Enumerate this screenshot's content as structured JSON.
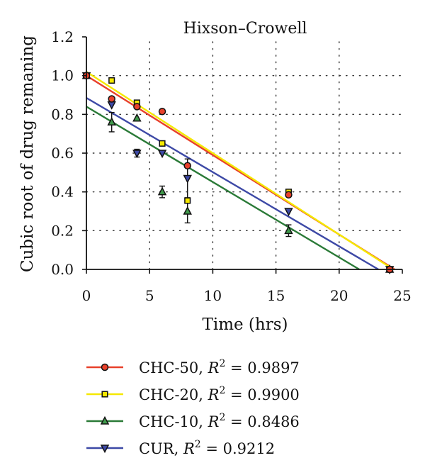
{
  "chart_data": {
    "type": "scatter",
    "title": "Hixson–Crowell",
    "xlabel": "Time (hrs)",
    "ylabel": "Cubic root of drug remaning",
    "xlim": [
      0,
      25
    ],
    "ylim": [
      0,
      1.2
    ],
    "xticks": [
      0,
      5,
      10,
      15,
      20,
      25
    ],
    "yticks": [
      0.0,
      0.2,
      0.4,
      0.6,
      0.8,
      1.0,
      1.2
    ],
    "xtick_labels": [
      "0",
      "5",
      "10",
      "15",
      "20",
      "25"
    ],
    "ytick_labels": [
      "0.0",
      "0.2",
      "0.4",
      "0.6",
      "0.8",
      "1.0",
      "1.2"
    ],
    "grid": "dotted",
    "legend_position": "bottom",
    "series": [
      {
        "name": "CHC-50",
        "r2_label": "R",
        "r2_text": " = 0.9897",
        "color": "#e8412b",
        "marker": "circle",
        "marker_fill": "#e8412b",
        "x": [
          0,
          2,
          4,
          6,
          8,
          16,
          24
        ],
        "y": [
          1.0,
          0.88,
          0.84,
          0.815,
          0.535,
          0.385,
          0.0
        ],
        "err": [
          0,
          0,
          0,
          0,
          0,
          0,
          0
        ],
        "fit": [
          1.0,
          -0.041
        ]
      },
      {
        "name": "CHC-20",
        "r2_label": "R",
        "r2_text": " = 0.9900",
        "color": "#f5e800",
        "marker": "square",
        "marker_fill": "#f5e800",
        "x": [
          0,
          2,
          4,
          6,
          8,
          16,
          24
        ],
        "y": [
          1.0,
          0.975,
          0.86,
          0.65,
          0.355,
          0.4,
          0.0
        ],
        "err": [
          0,
          0,
          0,
          0,
          0,
          0,
          0
        ],
        "fit": [
          1.02,
          -0.042
        ]
      },
      {
        "name": "CHC-10",
        "r2_label": "R",
        "r2_text": " = 0.8486",
        "color": "#2a7a37",
        "marker": "triangle-up",
        "marker_fill": "#3f9a4b",
        "x": [
          0,
          2,
          4,
          6,
          8,
          16,
          24
        ],
        "y": [
          1.0,
          0.76,
          0.78,
          0.4,
          0.3,
          0.2,
          0.0
        ],
        "err": [
          0,
          0.05,
          0,
          0.03,
          0.06,
          0.03,
          0
        ],
        "fit": [
          0.84,
          -0.0389
        ]
      },
      {
        "name": "CUR",
        "r2_label": "R",
        "r2_text": " = 0.9212",
        "color": "#3d49a6",
        "marker": "triangle-down",
        "marker_fill": "#3d49a6",
        "x": [
          0,
          2,
          4,
          6,
          8,
          16,
          24
        ],
        "y": [
          1.0,
          0.85,
          0.6,
          0.6,
          0.47,
          0.3,
          0.0
        ],
        "err": [
          0,
          0,
          0.02,
          0,
          0.1,
          0,
          0
        ],
        "fit": [
          0.885,
          -0.0383
        ]
      }
    ]
  }
}
